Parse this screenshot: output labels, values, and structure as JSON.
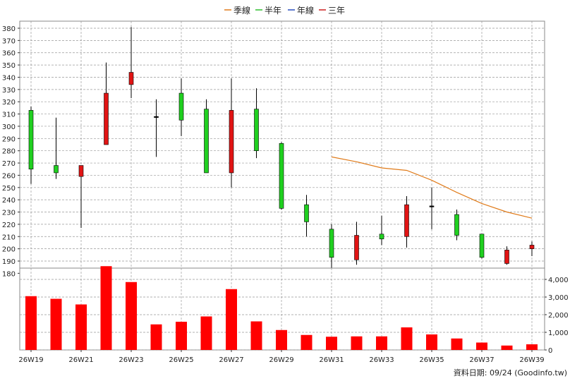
{
  "legend": [
    {
      "label": "季線",
      "color": "#e07b1a"
    },
    {
      "label": "半年",
      "color": "#2fbf2f"
    },
    {
      "label": "年線",
      "color": "#2a4fbf"
    },
    {
      "label": "三年",
      "color": "#cc1f1f"
    }
  ],
  "footer": "資料日期: 09/24  (Goodinfo.tw)",
  "colors": {
    "up": "#e11414",
    "down": "#20d020",
    "volume": "#ff0000",
    "ma_season": "#e07b1a",
    "grid": "#999999"
  },
  "chart_data": [
    {
      "type": "candlestick",
      "weeks": [
        "26W19",
        "26W20",
        "26W21",
        "26W22",
        "26W23",
        "26W24",
        "26W25",
        "26W26",
        "26W27",
        "26W28",
        "26W29",
        "26W30",
        "26W31",
        "26W32",
        "26W33",
        "26W34",
        "26W35",
        "26W36",
        "26W37",
        "26W38",
        "26W39"
      ],
      "x_tick_labels": [
        "26W19",
        "26W21",
        "26W23",
        "26W25",
        "26W27",
        "26W29",
        "26W31",
        "26W33",
        "26W35",
        "26W37",
        "26W39"
      ],
      "ylim": [
        175,
        385
      ],
      "y_ticks": [
        180,
        190,
        200,
        210,
        220,
        230,
        240,
        250,
        260,
        270,
        280,
        290,
        300,
        310,
        320,
        330,
        340,
        350,
        360,
        370,
        380
      ],
      "ohlc": [
        {
          "o": 313,
          "h": 316,
          "l": 253,
          "c": 265
        },
        {
          "o": 268,
          "h": 307,
          "l": 257,
          "c": 262
        },
        {
          "o": 259,
          "h": 268,
          "l": 217,
          "c": 268
        },
        {
          "o": 285,
          "h": 352,
          "l": 285,
          "c": 327
        },
        {
          "o": 334,
          "h": 381,
          "l": 323,
          "c": 344
        },
        {
          "o": 308,
          "h": 322,
          "l": 275,
          "c": 308
        },
        {
          "o": 327,
          "h": 339,
          "l": 292,
          "c": 305
        },
        {
          "o": 314,
          "h": 322,
          "l": 262,
          "c": 262
        },
        {
          "o": 262,
          "h": 339,
          "l": 250,
          "c": 313
        },
        {
          "o": 314,
          "h": 331,
          "l": 274,
          "c": 280
        },
        {
          "o": 286,
          "h": 287,
          "l": 232,
          "c": 233
        },
        {
          "o": 236,
          "h": 244,
          "l": 210,
          "c": 222
        },
        {
          "o": 216,
          "h": 220,
          "l": 174,
          "c": 193
        },
        {
          "o": 191,
          "h": 222,
          "l": 187,
          "c": 211
        },
        {
          "o": 212,
          "h": 227,
          "l": 203,
          "c": 208
        },
        {
          "o": 210,
          "h": 243,
          "l": 201,
          "c": 236
        },
        {
          "o": 235,
          "h": 250,
          "l": 216,
          "c": 235
        },
        {
          "o": 228,
          "h": 232,
          "l": 207,
          "c": 211
        },
        {
          "o": 212,
          "h": 212,
          "l": 192,
          "c": 193
        },
        {
          "o": 188,
          "h": 202,
          "l": 187,
          "c": 199
        },
        {
          "o": 200,
          "h": 206,
          "l": 194,
          "c": 203
        }
      ],
      "series": [
        {
          "name": "季線",
          "start_week": "26W31",
          "values": [
            275,
            271,
            266,
            264,
            256,
            246,
            237,
            230,
            225
          ]
        }
      ]
    },
    {
      "type": "bar",
      "categories": [
        "26W19",
        "26W20",
        "26W21",
        "26W22",
        "26W23",
        "26W24",
        "26W25",
        "26W26",
        "26W27",
        "26W28",
        "26W29",
        "26W30",
        "26W31",
        "26W32",
        "26W33",
        "26W34",
        "26W35",
        "26W36",
        "26W37",
        "26W38",
        "26W39"
      ],
      "values": [
        3050,
        2900,
        2580,
        4750,
        3850,
        1450,
        1600,
        1900,
        3450,
        1620,
        1130,
        850,
        750,
        770,
        770,
        1280,
        880,
        650,
        420,
        250,
        320
      ],
      "ylim": [
        0,
        4800
      ],
      "y_ticks": [
        0,
        1000,
        2000,
        3000,
        4000
      ],
      "y_tick_labels": [
        "0",
        "1,000",
        "2,000",
        "3,000",
        "4,000"
      ]
    }
  ]
}
